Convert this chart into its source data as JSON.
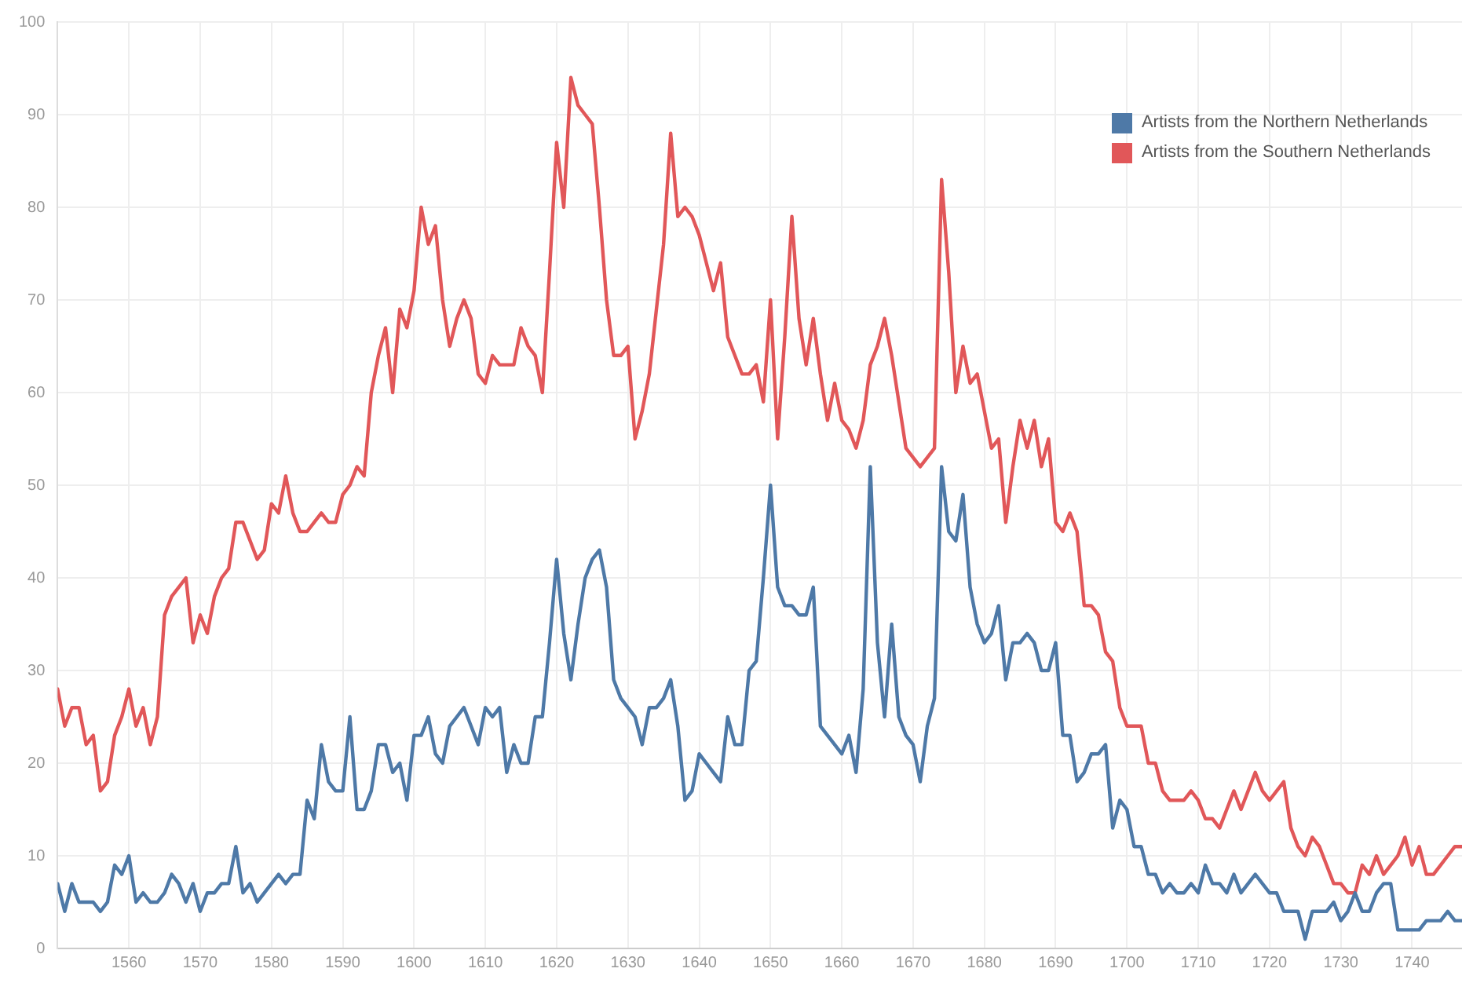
{
  "chart_data": {
    "type": "line",
    "x": [
      1550,
      1551,
      1552,
      1553,
      1554,
      1555,
      1556,
      1557,
      1558,
      1559,
      1560,
      1561,
      1562,
      1563,
      1564,
      1565,
      1566,
      1567,
      1568,
      1569,
      1570,
      1571,
      1572,
      1573,
      1574,
      1575,
      1576,
      1577,
      1578,
      1579,
      1580,
      1581,
      1582,
      1583,
      1584,
      1585,
      1586,
      1587,
      1588,
      1589,
      1590,
      1591,
      1592,
      1593,
      1594,
      1595,
      1596,
      1597,
      1598,
      1599,
      1600,
      1601,
      1602,
      1603,
      1604,
      1605,
      1606,
      1607,
      1608,
      1609,
      1610,
      1611,
      1612,
      1613,
      1614,
      1615,
      1616,
      1617,
      1618,
      1619,
      1620,
      1621,
      1622,
      1623,
      1624,
      1625,
      1626,
      1627,
      1628,
      1629,
      1630,
      1631,
      1632,
      1633,
      1634,
      1635,
      1636,
      1637,
      1638,
      1639,
      1640,
      1641,
      1642,
      1643,
      1644,
      1645,
      1646,
      1647,
      1648,
      1649,
      1650,
      1651,
      1652,
      1653,
      1654,
      1655,
      1656,
      1657,
      1658,
      1659,
      1660,
      1661,
      1662,
      1663,
      1664,
      1665,
      1666,
      1667,
      1668,
      1669,
      1670,
      1671,
      1672,
      1673,
      1674,
      1675,
      1676,
      1677,
      1678,
      1679,
      1680,
      1681,
      1682,
      1683,
      1684,
      1685,
      1686,
      1687,
      1688,
      1689,
      1690,
      1691,
      1692,
      1693,
      1694,
      1695,
      1696,
      1697,
      1698,
      1699,
      1700,
      1701,
      1702,
      1703,
      1704,
      1705,
      1706,
      1707,
      1708,
      1709,
      1710,
      1711,
      1712,
      1713,
      1714,
      1715,
      1716,
      1717,
      1718,
      1719,
      1720,
      1721,
      1722,
      1723,
      1724,
      1725,
      1726,
      1727,
      1728,
      1729,
      1730,
      1731,
      1732,
      1733,
      1734,
      1735,
      1736,
      1737,
      1738,
      1739,
      1740,
      1741,
      1742,
      1743,
      1744,
      1745,
      1746,
      1747
    ],
    "series": [
      {
        "name": "Artists from the Northern Netherlands",
        "color": "#4e79a7",
        "values": [
          7,
          4,
          7,
          5,
          5,
          5,
          4,
          5,
          9,
          8,
          10,
          5,
          6,
          5,
          5,
          6,
          8,
          7,
          5,
          7,
          4,
          6,
          6,
          7,
          7,
          11,
          6,
          7,
          5,
          6,
          7,
          8,
          7,
          8,
          8,
          16,
          14,
          22,
          18,
          17,
          17,
          25,
          15,
          15,
          17,
          22,
          22,
          19,
          20,
          16,
          23,
          23,
          25,
          21,
          20,
          24,
          25,
          26,
          24,
          22,
          26,
          25,
          26,
          19,
          22,
          20,
          20,
          25,
          25,
          33,
          42,
          34,
          29,
          35,
          40,
          42,
          43,
          39,
          29,
          27,
          26,
          25,
          22,
          26,
          26,
          27,
          29,
          24,
          16,
          17,
          21,
          20,
          19,
          18,
          25,
          22,
          22,
          30,
          31,
          40,
          50,
          39,
          37,
          37,
          36,
          36,
          39,
          24,
          23,
          22,
          21,
          23,
          19,
          28,
          52,
          33,
          25,
          35,
          25,
          23,
          22,
          18,
          24,
          27,
          52,
          45,
          44,
          49,
          39,
          35,
          33,
          34,
          37,
          29,
          33,
          33,
          34,
          33,
          30,
          30,
          33,
          23,
          23,
          18,
          19,
          21,
          21,
          22,
          13,
          16,
          15,
          11,
          11,
          8,
          8,
          6,
          7,
          6,
          6,
          7,
          6,
          9,
          7,
          7,
          6,
          8,
          6,
          7,
          8,
          7,
          6,
          6,
          4,
          4,
          4,
          1,
          4,
          4,
          4,
          5,
          3,
          4,
          6,
          4,
          4,
          6,
          7,
          7,
          2,
          2,
          2,
          2,
          3,
          3,
          3,
          4,
          3,
          3
        ]
      },
      {
        "name": "Artists from the Southern Netherlands",
        "color": "#e15759",
        "values": [
          28,
          24,
          26,
          26,
          22,
          23,
          17,
          18,
          23,
          25,
          28,
          24,
          26,
          22,
          25,
          36,
          38,
          39,
          40,
          33,
          36,
          34,
          38,
          40,
          41,
          46,
          46,
          44,
          42,
          43,
          48,
          47,
          51,
          47,
          45,
          45,
          46,
          47,
          46,
          46,
          49,
          50,
          52,
          51,
          60,
          64,
          67,
          60,
          69,
          67,
          71,
          80,
          76,
          78,
          70,
          65,
          68,
          70,
          68,
          62,
          61,
          64,
          63,
          63,
          63,
          67,
          65,
          64,
          60,
          73,
          87,
          80,
          94,
          91,
          90,
          89,
          80,
          70,
          64,
          64,
          65,
          55,
          58,
          62,
          69,
          76,
          88,
          79,
          80,
          79,
          77,
          74,
          71,
          74,
          66,
          64,
          62,
          62,
          63,
          59,
          70,
          55,
          66,
          79,
          68,
          63,
          68,
          62,
          57,
          61,
          57,
          56,
          54,
          57,
          63,
          65,
          68,
          64,
          59,
          54,
          53,
          52,
          53,
          54,
          83,
          73,
          60,
          65,
          61,
          62,
          58,
          54,
          55,
          46,
          52,
          57,
          54,
          57,
          52,
          55,
          46,
          45,
          47,
          45,
          37,
          37,
          36,
          32,
          31,
          26,
          24,
          24,
          24,
          20,
          20,
          17,
          16,
          16,
          16,
          17,
          16,
          14,
          14,
          13,
          15,
          17,
          15,
          17,
          19,
          17,
          16,
          17,
          18,
          13,
          11,
          10,
          12,
          11,
          9,
          7,
          7,
          6,
          6,
          9,
          8,
          10,
          8,
          9,
          10,
          12,
          9,
          11,
          8,
          8,
          9,
          10,
          11,
          11
        ]
      }
    ],
    "xlim": [
      1550,
      1747
    ],
    "xticks": [
      1560,
      1570,
      1580,
      1590,
      1600,
      1610,
      1620,
      1630,
      1640,
      1650,
      1660,
      1670,
      1680,
      1690,
      1700,
      1710,
      1720,
      1730,
      1740
    ],
    "ylim": [
      0,
      100
    ],
    "yticks": [
      0,
      10,
      20,
      30,
      40,
      50,
      60,
      70,
      80,
      90,
      100
    ],
    "grid": true,
    "legend": "top right",
    "marker": "none",
    "line_style": "solid"
  }
}
